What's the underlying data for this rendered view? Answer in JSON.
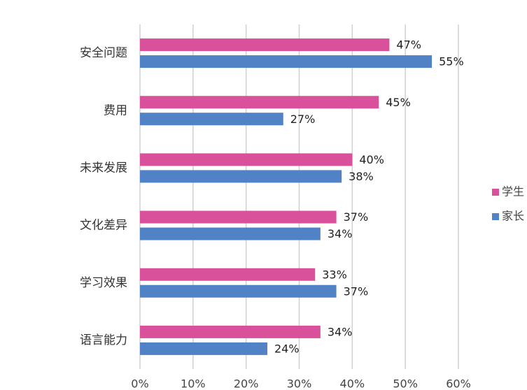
{
  "chart_data": {
    "type": "bar",
    "orientation": "horizontal",
    "categories": [
      "安全问题",
      "费用",
      "未来发展",
      "文化差异",
      "学习效果",
      "语言能力"
    ],
    "series": [
      {
        "name": "学生",
        "color": "#d9519a",
        "values": [
          47,
          45,
          40,
          37,
          33,
          34
        ],
        "value_labels": [
          "47%",
          "45%",
          "40%",
          "37%",
          "33%",
          "34%"
        ]
      },
      {
        "name": "家长",
        "color": "#5182c6",
        "values": [
          55,
          27,
          38,
          34,
          37,
          24
        ],
        "value_labels": [
          "55%",
          "27%",
          "38%",
          "34%",
          "37%",
          "24%"
        ]
      }
    ],
    "xlim": [
      0,
      60
    ],
    "xticks": [
      {
        "value": 0,
        "label": "0%"
      },
      {
        "value": 10,
        "label": "10%"
      },
      {
        "value": 20,
        "label": "20%"
      },
      {
        "value": 30,
        "label": "30%"
      },
      {
        "value": 40,
        "label": "40%"
      },
      {
        "value": 50,
        "label": "50%"
      },
      {
        "value": 60,
        "label": "60%"
      }
    ],
    "grid": true,
    "legend": "right"
  }
}
